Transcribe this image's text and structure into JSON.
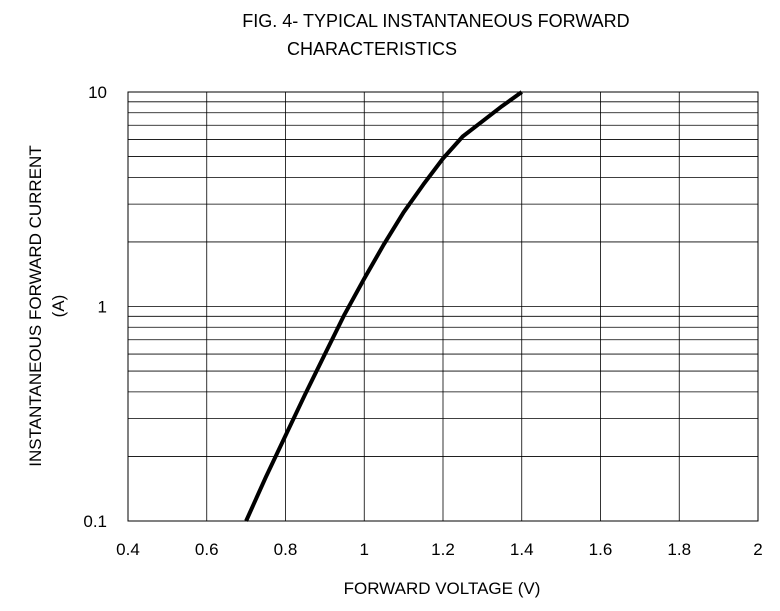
{
  "chart_data": {
    "type": "line",
    "title_lines": [
      "FIG. 4- TYPICAL INSTANTANEOUS FORWARD",
      "CHARACTERISTICS"
    ],
    "xlabel": "FORWARD VOLTAGE (V)",
    "ylabel_lines": [
      "INSTANTANEOUS FORWARD CURRENT",
      "(A)"
    ],
    "xlim": [
      0.4,
      2
    ],
    "ylim": [
      0.1,
      10
    ],
    "y_scale": "log",
    "grid": true,
    "x_ticks": [
      0.4,
      0.6,
      0.8,
      1,
      1.2,
      1.4,
      1.6,
      1.8,
      2
    ],
    "x_tick_labels": [
      "0.4",
      "0.6",
      "0.8",
      "1",
      "1.2",
      "1.4",
      "1.6",
      "1.8",
      "2"
    ],
    "y_ticks": [
      0.1,
      1,
      10
    ],
    "y_tick_labels": [
      "0.1",
      "1",
      "10"
    ],
    "series": [
      {
        "color": "#000000",
        "points": [
          {
            "x": 0.7,
            "y": 0.1
          },
          {
            "x": 0.75,
            "y": 0.16
          },
          {
            "x": 0.8,
            "y": 0.25
          },
          {
            "x": 0.85,
            "y": 0.39
          },
          {
            "x": 0.9,
            "y": 0.6
          },
          {
            "x": 0.95,
            "y": 0.92
          },
          {
            "x": 1.0,
            "y": 1.35
          },
          {
            "x": 1.05,
            "y": 1.95
          },
          {
            "x": 1.1,
            "y": 2.75
          },
          {
            "x": 1.15,
            "y": 3.7
          },
          {
            "x": 1.2,
            "y": 4.9
          },
          {
            "x": 1.25,
            "y": 6.2
          },
          {
            "x": 1.3,
            "y": 7.3
          },
          {
            "x": 1.35,
            "y": 8.6
          },
          {
            "x": 1.4,
            "y": 10.0
          }
        ]
      }
    ]
  }
}
